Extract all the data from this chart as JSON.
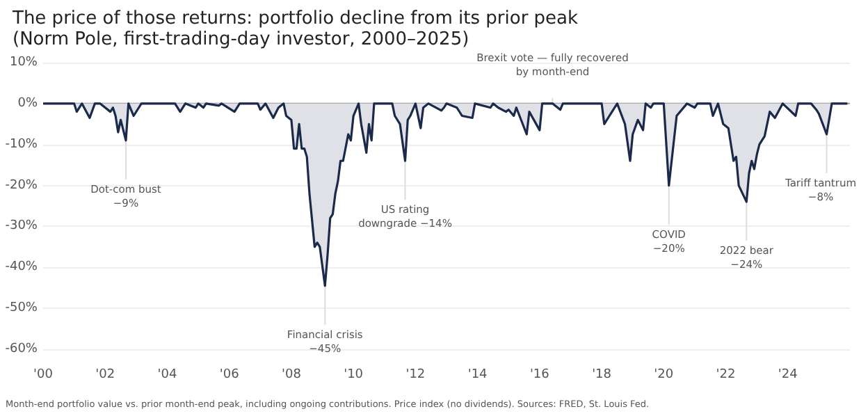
{
  "chart_data": {
    "type": "area",
    "title": "The price of those returns: portfolio decline from its prior peak",
    "subtitle": "(Norm Pole, first-trading-day investor, 2000–2025)",
    "x": [
      "2000-01",
      "2001-01",
      "2001-02",
      "2001-04",
      "2001-07",
      "2001-09",
      "2001-11",
      "2002-03",
      "2002-04",
      "2002-05",
      "2002-06",
      "2002-07",
      "2002-09",
      "2002-10",
      "2002-12",
      "2003-02",
      "2003-03",
      "2004-04",
      "2004-06",
      "2004-08",
      "2004-12",
      "2005-01",
      "2005-03",
      "2005-04",
      "2005-09",
      "2005-10",
      "2006-03",
      "2006-05",
      "2006-12",
      "2007-01",
      "2007-03",
      "2007-06",
      "2007-08",
      "2007-10",
      "2007-11",
      "2008-01",
      "2008-02",
      "2008-03",
      "2008-04",
      "2008-05",
      "2008-06",
      "2008-07",
      "2008-08",
      "2008-10",
      "2008-11",
      "2008-12",
      "2009-02",
      "2009-03",
      "2009-04",
      "2009-05",
      "2009-06",
      "2009-07",
      "2009-08",
      "2009-09",
      "2009-11",
      "2009-12",
      "2010-01",
      "2010-03",
      "2010-04",
      "2010-06",
      "2010-07",
      "2010-08",
      "2010-09",
      "2011-04",
      "2011-05",
      "2011-07",
      "2011-09",
      "2011-10",
      "2011-11",
      "2012-01",
      "2012-03",
      "2012-04",
      "2012-06",
      "2012-11",
      "2012-12",
      "2013-01",
      "2013-05",
      "2013-07",
      "2013-11",
      "2013-12",
      "2014-06",
      "2014-07",
      "2014-09",
      "2014-12",
      "2015-01",
      "2015-03",
      "2015-04",
      "2015-08",
      "2015-09",
      "2016-01",
      "2016-02",
      "2016-06",
      "2016-09",
      "2016-10",
      "2018-01",
      "2018-02",
      "2018-04",
      "2018-05",
      "2018-07",
      "2018-10",
      "2018-12",
      "2019-01",
      "2019-03",
      "2019-05",
      "2019-06",
      "2019-08",
      "2019-09",
      "2020-01",
      "2020-03",
      "2020-06",
      "2020-10",
      "2021-01",
      "2021-02",
      "2021-07",
      "2021-08",
      "2021-09",
      "2021-10",
      "2021-12",
      "2022-02",
      "2022-04",
      "2022-05",
      "2022-06",
      "2022-09",
      "2022-10",
      "2022-11",
      "2022-12",
      "2023-01",
      "2023-02",
      "2023-04",
      "2023-06",
      "2023-08",
      "2023-11",
      "2024-04",
      "2024-05",
      "2024-10",
      "2024-12",
      "2025-01",
      "2025-04",
      "2025-06",
      "2025-12"
    ],
    "values": [
      0,
      0,
      -2,
      0,
      -3.5,
      0,
      0,
      -2,
      -1,
      -3,
      -7,
      -4,
      -9,
      0,
      -3,
      -1,
      0,
      0,
      -2,
      0,
      -1,
      0,
      -1,
      0,
      -0.5,
      0,
      -2,
      0,
      0,
      -1.5,
      0,
      -3.5,
      -1,
      0,
      -3,
      -4,
      -11,
      -11,
      -5,
      -11,
      -11,
      -13,
      -22,
      -35,
      -34,
      -35,
      -44.5,
      -37,
      -28,
      -27,
      -22,
      -19,
      -14,
      -14,
      -7.5,
      -9,
      -3,
      0,
      -5,
      -12,
      -5,
      -9,
      0,
      0,
      -3,
      -5,
      -14,
      -4,
      -3,
      0,
      -6,
      -1,
      0,
      -1.7,
      -1,
      0,
      -1,
      -3,
      -3.5,
      0,
      -1,
      0,
      -1,
      -2,
      -1.5,
      -3,
      -1,
      -7.5,
      -2,
      -6.5,
      0,
      0,
      -1.5,
      0,
      0,
      -5,
      -3,
      -2,
      0,
      -5,
      -14,
      -7.5,
      -4,
      -6.5,
      0,
      -1,
      0,
      0,
      -20,
      -3,
      0,
      -1,
      0,
      0,
      -3,
      -1.5,
      0,
      -5,
      -6,
      -14,
      -13,
      -20,
      -24,
      -17,
      -14,
      -16,
      -12.5,
      -10,
      -8,
      -2,
      -3.5,
      0,
      -3,
      0,
      0,
      -1.5,
      -2.5,
      -7.5,
      0,
      0
    ],
    "color": "#1b2a4a",
    "xlim": [
      "2000-01",
      "2026-01"
    ],
    "xticks": [
      {
        "value": "2000-01",
        "label": "'00"
      },
      {
        "value": "2002-01",
        "label": "'02"
      },
      {
        "value": "2004-01",
        "label": "'04"
      },
      {
        "value": "2006-01",
        "label": "'06"
      },
      {
        "value": "2008-01",
        "label": "'08"
      },
      {
        "value": "2010-01",
        "label": "'10"
      },
      {
        "value": "2012-01",
        "label": "'12"
      },
      {
        "value": "2014-01",
        "label": "'14"
      },
      {
        "value": "2016-01",
        "label": "'16"
      },
      {
        "value": "2018-01",
        "label": "'18"
      },
      {
        "value": "2020-01",
        "label": "'20"
      },
      {
        "value": "2022-01",
        "label": "'22"
      },
      {
        "value": "2024-01",
        "label": "'24"
      }
    ],
    "ylim": [
      -60,
      10
    ],
    "yticks": [
      {
        "value": 10,
        "label": "10%"
      },
      {
        "value": 0,
        "label": "0%"
      },
      {
        "value": -10,
        "label": "-10%"
      },
      {
        "value": -20,
        "label": "-20%"
      },
      {
        "value": -30,
        "label": "-30%"
      },
      {
        "value": -40,
        "label": "-40%"
      },
      {
        "value": -50,
        "label": "-50%"
      },
      {
        "value": -60,
        "label": "-60%"
      }
    ],
    "grid": "y",
    "annotations": [
      {
        "text": "Dot-com bust\n−9%",
        "x": "2002-09",
        "y": -9
      },
      {
        "text": "Financial crisis\n−45%",
        "x": "2009-02",
        "y": -44.5
      },
      {
        "text": "US rating\ndowngrade −14%",
        "x": "2011-09",
        "y": -14
      },
      {
        "text": "Brexit vote — fully recovered\nby month-end",
        "x": "2016-06",
        "y": 0
      },
      {
        "text": "COVID\n−20%",
        "x": "2020-03",
        "y": -20
      },
      {
        "text": "2022 bear\n−24%",
        "x": "2022-09",
        "y": -24
      },
      {
        "text": "Tariff tantrum\n−8%",
        "x": "2025-04",
        "y": -7.5
      },
      "Month-end portfolio value vs. prior month-end peak, including ongoing contributions. Price index (no dividends). Sources: FRED, St. Louis Fed."
    ]
  }
}
